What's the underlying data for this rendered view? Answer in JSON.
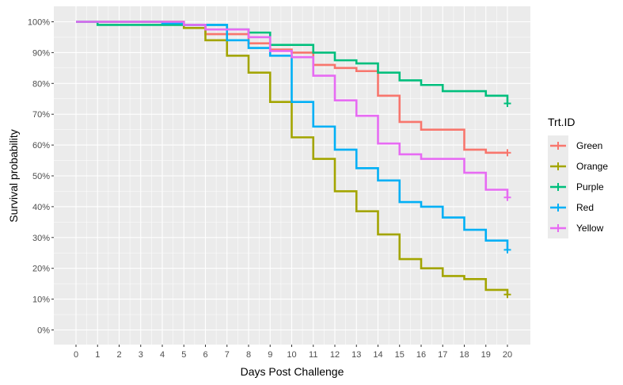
{
  "chart_data": {
    "type": "line",
    "step": true,
    "xlabel": "Days Post Challenge",
    "ylabel": "Survival probability",
    "xlim": [
      0,
      20
    ],
    "ylim": [
      0,
      1
    ],
    "x_ticks": [
      "0",
      "1",
      "2",
      "3",
      "4",
      "5",
      "6",
      "7",
      "8",
      "9",
      "10",
      "11",
      "12",
      "13",
      "14",
      "15",
      "16",
      "17",
      "18",
      "19",
      "20"
    ],
    "y_ticks": [
      "0%",
      "10%",
      "20%",
      "30%",
      "40%",
      "50%",
      "60%",
      "70%",
      "80%",
      "90%",
      "100%"
    ],
    "grid": true,
    "legend": {
      "title": "Trt.ID",
      "position": "right"
    },
    "x": [
      0,
      1,
      2,
      3,
      4,
      5,
      6,
      7,
      8,
      9,
      10,
      11,
      12,
      13,
      14,
      15,
      16,
      17,
      18,
      19,
      20
    ],
    "series": [
      {
        "name": "Green",
        "color": "#F8766D",
        "values": [
          1.0,
          1.0,
          1.0,
          1.0,
          1.0,
          0.99,
          0.96,
          0.96,
          0.93,
          0.91,
          0.9,
          0.86,
          0.85,
          0.84,
          0.76,
          0.675,
          0.65,
          0.65,
          0.585,
          0.575,
          0.575
        ],
        "censor": 0.575
      },
      {
        "name": "Orange",
        "color": "#A3A500",
        "values": [
          1.0,
          1.0,
          1.0,
          1.0,
          1.0,
          0.98,
          0.94,
          0.89,
          0.835,
          0.74,
          0.625,
          0.555,
          0.45,
          0.385,
          0.31,
          0.23,
          0.2,
          0.175,
          0.165,
          0.13,
          0.115
        ],
        "censor": 0.115
      },
      {
        "name": "Purple",
        "color": "#00BF7D",
        "values": [
          1.0,
          0.99,
          0.99,
          0.99,
          0.99,
          0.99,
          0.99,
          0.975,
          0.965,
          0.925,
          0.925,
          0.9,
          0.875,
          0.865,
          0.835,
          0.81,
          0.795,
          0.775,
          0.775,
          0.76,
          0.735
        ],
        "censor": 0.735
      },
      {
        "name": "Red",
        "color": "#00B0F6",
        "values": [
          1.0,
          1.0,
          1.0,
          1.0,
          0.995,
          0.99,
          0.99,
          0.94,
          0.915,
          0.89,
          0.74,
          0.66,
          0.585,
          0.525,
          0.485,
          0.415,
          0.4,
          0.365,
          0.325,
          0.29,
          0.26
        ],
        "censor": 0.26
      },
      {
        "name": "Yellow",
        "color": "#E76BF3",
        "values": [
          1.0,
          1.0,
          1.0,
          1.0,
          1.0,
          0.99,
          0.975,
          0.975,
          0.95,
          0.905,
          0.885,
          0.825,
          0.745,
          0.695,
          0.605,
          0.57,
          0.555,
          0.555,
          0.51,
          0.455,
          0.43
        ],
        "censor": 0.43
      }
    ]
  }
}
